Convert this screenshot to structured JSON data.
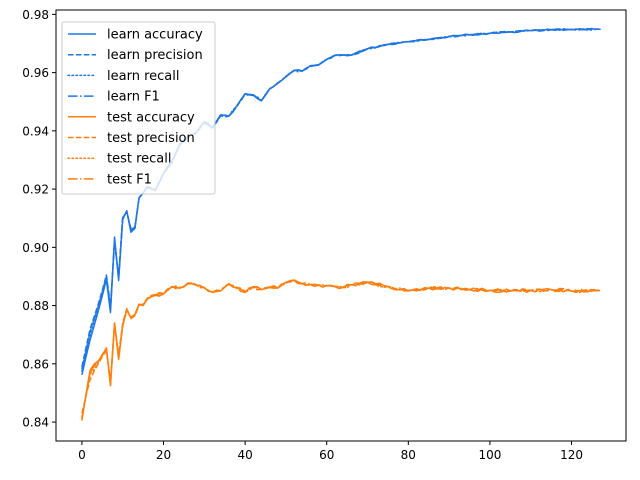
{
  "chart_data": {
    "type": "line",
    "title": "",
    "xlabel": "",
    "ylabel": "",
    "xlim": [
      -6.35,
      133.35
    ],
    "ylim": [
      0.8335,
      0.9815
    ],
    "x_ticks": [
      0,
      20,
      40,
      60,
      80,
      100,
      120
    ],
    "y_ticks": [
      0.84,
      0.86,
      0.88,
      0.9,
      0.92,
      0.94,
      0.96,
      0.98
    ],
    "x_tick_labels": [
      "0",
      "20",
      "40",
      "60",
      "80",
      "100",
      "120"
    ],
    "y_tick_labels": [
      "0.84",
      "0.86",
      "0.88",
      "0.90",
      "0.92",
      "0.94",
      "0.96",
      "0.98"
    ],
    "grid": false,
    "legend_position": "top-left",
    "colors": {
      "learn": "#1f77e6",
      "test": "#ff7f0e"
    },
    "x_anchor": [
      0,
      2,
      4,
      6,
      7,
      8,
      9,
      10,
      11,
      12,
      13,
      14,
      15,
      16,
      17,
      18,
      20,
      22,
      24,
      26,
      28,
      30,
      32,
      34,
      36,
      38,
      40,
      42,
      44,
      46,
      48,
      50,
      52,
      54,
      56,
      58,
      60,
      62,
      64,
      66,
      70,
      75,
      80,
      85,
      90,
      95,
      100,
      105,
      110,
      115,
      120,
      127
    ],
    "series": [
      {
        "name": "learn accuracy",
        "group": "learn",
        "dash": "solid",
        "values": [
          0.8562,
          0.8682,
          0.8781,
          0.889,
          0.8776,
          0.9035,
          0.8886,
          0.9096,
          0.9126,
          0.9052,
          0.9065,
          0.9171,
          0.9185,
          0.9209,
          0.9203,
          0.9195,
          0.9255,
          0.9294,
          0.9355,
          0.9381,
          0.9394,
          0.9431,
          0.9411,
          0.9455,
          0.9451,
          0.9487,
          0.9528,
          0.9524,
          0.9503,
          0.9545,
          0.9565,
          0.9587,
          0.9608,
          0.9606,
          0.9624,
          0.9627,
          0.9646,
          0.966,
          0.9661,
          0.966,
          0.9682,
          0.9697,
          0.9706,
          0.9714,
          0.9724,
          0.973,
          0.9735,
          0.974,
          0.9744,
          0.9747,
          0.9748,
          0.9749
        ]
      },
      {
        "name": "learn precision",
        "group": "learn",
        "dash": "dashed",
        "values": [
          0.859,
          0.872,
          0.8805,
          0.8905,
          0.88,
          0.9015,
          0.89,
          0.9105,
          0.912,
          0.9065,
          0.907,
          0.9168,
          0.919,
          0.9205,
          0.92,
          0.9198,
          0.9252,
          0.929,
          0.9352,
          0.9378,
          0.9392,
          0.9428,
          0.941,
          0.9452,
          0.945,
          0.9485,
          0.9526,
          0.9522,
          0.9505,
          0.9543,
          0.9563,
          0.9585,
          0.9606,
          0.9605,
          0.9622,
          0.9626,
          0.9645,
          0.9659,
          0.966,
          0.966,
          0.9681,
          0.9697,
          0.9706,
          0.9714,
          0.9724,
          0.973,
          0.9735,
          0.974,
          0.9744,
          0.9747,
          0.9748,
          0.9749
        ]
      },
      {
        "name": "learn recall",
        "group": "learn",
        "dash": "dotted",
        "values": [
          0.8575,
          0.87,
          0.879,
          0.8895,
          0.8785,
          0.9028,
          0.8892,
          0.91,
          0.9123,
          0.9058,
          0.9068,
          0.917,
          0.9187,
          0.9207,
          0.9202,
          0.9196,
          0.9254,
          0.9292,
          0.9354,
          0.938,
          0.9393,
          0.943,
          0.9411,
          0.9454,
          0.9451,
          0.9486,
          0.9527,
          0.9523,
          0.9504,
          0.9544,
          0.9564,
          0.9586,
          0.9607,
          0.9606,
          0.9623,
          0.9627,
          0.9646,
          0.966,
          0.9661,
          0.966,
          0.9682,
          0.9697,
          0.9706,
          0.9714,
          0.9724,
          0.973,
          0.9735,
          0.974,
          0.9744,
          0.9747,
          0.9748,
          0.9749
        ]
      },
      {
        "name": "learn F1",
        "group": "learn",
        "dash": "dashdot",
        "values": [
          0.8582,
          0.871,
          0.8798,
          0.89,
          0.8792,
          0.9022,
          0.8896,
          0.9102,
          0.9121,
          0.9061,
          0.9069,
          0.9169,
          0.9188,
          0.9206,
          0.9201,
          0.9197,
          0.9253,
          0.9291,
          0.9353,
          0.9379,
          0.9393,
          0.9429,
          0.941,
          0.9453,
          0.945,
          0.9485,
          0.9526,
          0.9522,
          0.9504,
          0.9543,
          0.9563,
          0.9585,
          0.9606,
          0.9605,
          0.9622,
          0.9626,
          0.9645,
          0.9659,
          0.966,
          0.966,
          0.9681,
          0.9697,
          0.9706,
          0.9714,
          0.9724,
          0.973,
          0.9735,
          0.974,
          0.9744,
          0.9747,
          0.9748,
          0.9749
        ]
      },
      {
        "name": "test accuracy",
        "group": "test",
        "dash": "solid",
        "values": [
          0.8405,
          0.8578,
          0.861,
          0.8655,
          0.8525,
          0.874,
          0.8615,
          0.873,
          0.8785,
          0.876,
          0.877,
          0.8805,
          0.88,
          0.8822,
          0.883,
          0.8835,
          0.884,
          0.8865,
          0.886,
          0.8875,
          0.887,
          0.886,
          0.8845,
          0.885,
          0.8875,
          0.886,
          0.8845,
          0.8865,
          0.8855,
          0.8862,
          0.886,
          0.888,
          0.8888,
          0.8875,
          0.8872,
          0.887,
          0.8868,
          0.8865,
          0.8862,
          0.8872,
          0.888,
          0.8865,
          0.885,
          0.886,
          0.886,
          0.8855,
          0.8852,
          0.885,
          0.8852,
          0.8855,
          0.885,
          0.8852
        ]
      },
      {
        "name": "test precision",
        "group": "test",
        "dash": "dashed",
        "values": [
          0.843,
          0.8545,
          0.86,
          0.8645,
          0.854,
          0.8735,
          0.863,
          0.874,
          0.879,
          0.8755,
          0.8765,
          0.88,
          0.8805,
          0.8825,
          0.8835,
          0.8838,
          0.8842,
          0.8862,
          0.8862,
          0.8878,
          0.8872,
          0.8862,
          0.8848,
          0.8852,
          0.8872,
          0.8862,
          0.8848,
          0.8862,
          0.8856,
          0.8864,
          0.8862,
          0.8878,
          0.8886,
          0.8876,
          0.8872,
          0.8871,
          0.8869,
          0.8866,
          0.8863,
          0.8871,
          0.8878,
          0.8866,
          0.8852,
          0.886,
          0.886,
          0.8856,
          0.8853,
          0.8851,
          0.8852,
          0.8855,
          0.8851,
          0.8852
        ]
      },
      {
        "name": "test recall",
        "group": "test",
        "dash": "dotted",
        "values": [
          0.8418,
          0.8565,
          0.8605,
          0.865,
          0.8532,
          0.8738,
          0.8622,
          0.8735,
          0.8788,
          0.8757,
          0.8768,
          0.8803,
          0.8802,
          0.8823,
          0.8832,
          0.8836,
          0.8841,
          0.8864,
          0.8861,
          0.8876,
          0.8871,
          0.8861,
          0.8846,
          0.8851,
          0.8874,
          0.8861,
          0.8846,
          0.8864,
          0.8855,
          0.8863,
          0.8861,
          0.8879,
          0.8887,
          0.8875,
          0.8872,
          0.887,
          0.8868,
          0.8865,
          0.8862,
          0.8872,
          0.8879,
          0.8865,
          0.8851,
          0.886,
          0.886,
          0.8855,
          0.8852,
          0.885,
          0.8852,
          0.8855,
          0.885,
          0.8852
        ]
      },
      {
        "name": "test F1",
        "group": "test",
        "dash": "dashdot",
        "values": [
          0.8412,
          0.857,
          0.8608,
          0.8652,
          0.853,
          0.8739,
          0.862,
          0.8733,
          0.8786,
          0.8758,
          0.8769,
          0.8804,
          0.8801,
          0.8822,
          0.8831,
          0.8836,
          0.884,
          0.8864,
          0.8861,
          0.8876,
          0.8871,
          0.8861,
          0.8846,
          0.8851,
          0.8874,
          0.8861,
          0.8846,
          0.8864,
          0.8855,
          0.8863,
          0.8861,
          0.8879,
          0.8887,
          0.8875,
          0.8872,
          0.887,
          0.8868,
          0.8865,
          0.8862,
          0.8872,
          0.8879,
          0.8865,
          0.8851,
          0.886,
          0.886,
          0.8855,
          0.8852,
          0.885,
          0.8852,
          0.8855,
          0.885,
          0.8852
        ]
      }
    ]
  }
}
